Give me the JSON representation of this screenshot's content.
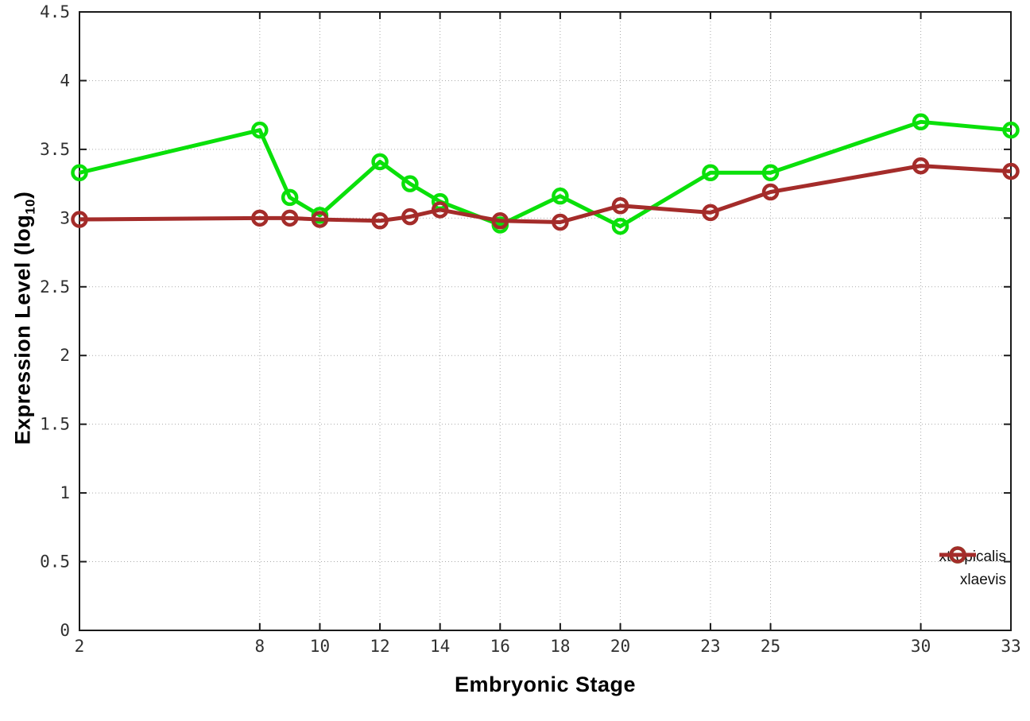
{
  "figure": {
    "background": "#ffffff",
    "border_color": "#1a1a1a",
    "grid_color": "#aaaaaa"
  },
  "axes": {
    "y_title_main": "Expression Level (log",
    "y_title_sub": "10",
    "y_title_close": ")"
  },
  "chart_data": {
    "type": "line",
    "title": "",
    "xlabel": "Embryonic Stage",
    "ylabel": "Expression Level (log10)",
    "x": [
      2,
      8,
      9,
      10,
      12,
      13,
      14,
      16,
      18,
      20,
      23,
      25,
      30,
      33
    ],
    "x_tick_labels": [
      2,
      8,
      10,
      12,
      14,
      16,
      18,
      20,
      23,
      25,
      30,
      33
    ],
    "y_ticks": [
      0,
      0.5,
      1,
      1.5,
      2,
      2.5,
      3,
      3.5,
      4,
      4.5
    ],
    "xlim": [
      2,
      33
    ],
    "ylim": [
      0,
      4.5
    ],
    "grid": true,
    "legend_position": "bottom-right",
    "series": [
      {
        "name": "xtropicalis",
        "color": "#0ae00a",
        "values": [
          3.33,
          3.64,
          3.15,
          3.02,
          3.41,
          3.25,
          3.12,
          2.95,
          3.16,
          2.94,
          3.33,
          3.33,
          3.7,
          3.64
        ]
      },
      {
        "name": "xlaevis",
        "color": "#a42c2a",
        "values": [
          2.99,
          3.0,
          3.0,
          2.99,
          2.98,
          3.01,
          3.06,
          2.98,
          2.97,
          3.09,
          3.04,
          3.19,
          3.38,
          3.34
        ]
      }
    ]
  }
}
